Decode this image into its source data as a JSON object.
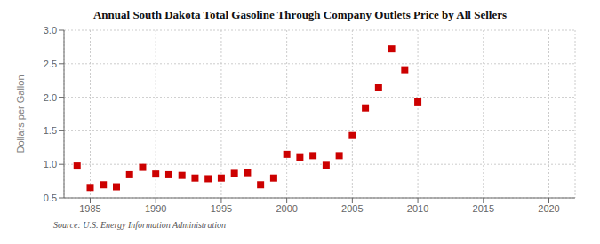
{
  "chart_data": {
    "type": "scatter",
    "title": "Annual South Dakota Total Gasoline Through Company Outlets Price by All Sellers",
    "ylabel": "Dollars per Gallon",
    "annotations": [
      "Source: U.S. Energy Information Administration"
    ],
    "x": [
      1984,
      1985,
      1986,
      1987,
      1988,
      1989,
      1990,
      1991,
      1992,
      1993,
      1994,
      1995,
      1996,
      1997,
      1998,
      1999,
      2000,
      2001,
      2002,
      2003,
      2004,
      2005,
      2006,
      2007,
      2008,
      2009,
      2010
    ],
    "values": [
      0.975,
      0.655,
      0.695,
      0.665,
      0.845,
      0.955,
      0.855,
      0.845,
      0.835,
      0.795,
      0.785,
      0.795,
      0.865,
      0.875,
      0.695,
      0.795,
      1.15,
      1.1,
      1.13,
      0.985,
      1.13,
      1.43,
      1.84,
      2.14,
      2.72,
      2.41,
      1.93
    ],
    "color": "#cc0000",
    "marker": "square",
    "xlim": [
      1983,
      2022
    ],
    "ylim": [
      0.5,
      3.0
    ],
    "xticks": [
      1985,
      1990,
      1995,
      2000,
      2005,
      2010,
      2015,
      2020
    ],
    "yticks": [
      0.5,
      {
        "value": 1,
        "label": "1.0"
      },
      1.5,
      {
        "value": 2,
        "label": "2.0"
      },
      2.5,
      {
        "value": 3,
        "label": "3.0"
      }
    ],
    "grid": true
  }
}
